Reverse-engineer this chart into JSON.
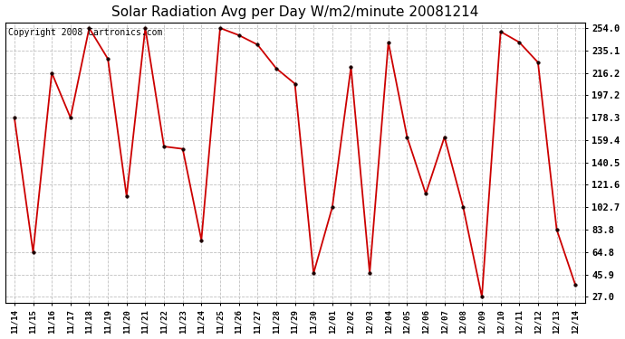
{
  "title": "Solar Radiation Avg per Day W/m2/minute 20081214",
  "copyright_text": "Copyright 2008 Cartronics.com",
  "labels": [
    "11/14",
    "11/15",
    "11/16",
    "11/17",
    "11/18",
    "11/19",
    "11/20",
    "11/21",
    "11/22",
    "11/23",
    "11/24",
    "11/25",
    "11/26",
    "11/27",
    "11/28",
    "11/29",
    "11/30",
    "12/01",
    "12/02",
    "12/03",
    "12/04",
    "12/05",
    "12/06",
    "12/07",
    "12/08",
    "12/09",
    "12/10",
    "12/11",
    "12/12",
    "12/13",
    "12/14"
  ],
  "values": [
    178.3,
    64.8,
    216.2,
    178.3,
    254.0,
    228.0,
    112.0,
    254.0,
    154.0,
    152.0,
    75.0,
    254.0,
    248.0,
    240.0,
    220.0,
    207.0,
    47.0,
    102.7,
    221.0,
    47.0,
    242.0,
    162.0,
    114.0,
    162.0,
    102.7,
    27.0,
    251.0,
    242.0,
    225.0,
    83.8,
    37.0
  ],
  "ytick_values": [
    27.0,
    45.9,
    64.8,
    83.8,
    102.7,
    121.6,
    140.5,
    159.4,
    178.3,
    197.2,
    216.2,
    235.1,
    254.0
  ],
  "line_color": "#cc0000",
  "marker_color": "#1a0000",
  "bg_color": "#ffffff",
  "grid_color": "#b0b0b0",
  "title_fontsize": 11,
  "copyright_fontsize": 7,
  "ymin": 27.0,
  "ymax": 254.0,
  "figwidth": 6.9,
  "figheight": 3.75,
  "dpi": 100
}
